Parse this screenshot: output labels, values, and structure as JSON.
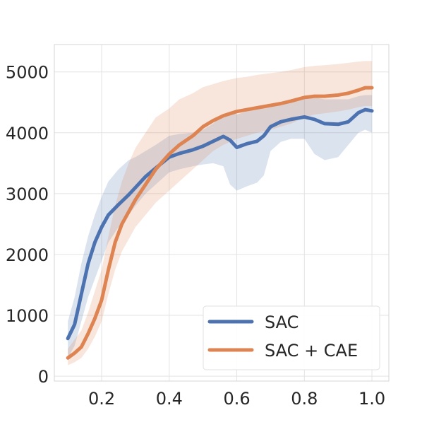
{
  "chart_data": {
    "type": "line",
    "title": "",
    "xlabel": "",
    "ylabel": "",
    "xlim": [
      0.06,
      1.05
    ],
    "ylim": [
      -80,
      5450
    ],
    "x_ticks": [
      0.2,
      0.4,
      0.6,
      0.8,
      1.0
    ],
    "x_tick_labels": [
      "0.2",
      "0.4",
      "0.6",
      "0.8",
      "1.0"
    ],
    "y_ticks": [
      0,
      1000,
      2000,
      3000,
      4000,
      5000
    ],
    "y_tick_labels": [
      "0",
      "1000",
      "2000",
      "3000",
      "4000",
      "5000"
    ],
    "grid": true,
    "legend_position": "bottom-right",
    "series": [
      {
        "name": "SAC",
        "color": "#4c72b0",
        "x": [
          0.1,
          0.12,
          0.14,
          0.16,
          0.18,
          0.2,
          0.22,
          0.25,
          0.28,
          0.3,
          0.33,
          0.36,
          0.4,
          0.43,
          0.47,
          0.5,
          0.53,
          0.56,
          0.58,
          0.6,
          0.63,
          0.66,
          0.68,
          0.7,
          0.73,
          0.76,
          0.8,
          0.83,
          0.86,
          0.9,
          0.93,
          0.96,
          0.98,
          1.0
        ],
        "values": [
          620,
          850,
          1350,
          1850,
          2200,
          2450,
          2650,
          2820,
          2980,
          3100,
          3280,
          3420,
          3600,
          3660,
          3720,
          3780,
          3860,
          3940,
          3880,
          3760,
          3820,
          3860,
          3950,
          4100,
          4180,
          4220,
          4260,
          4220,
          4150,
          4140,
          4180,
          4330,
          4380,
          4360
        ],
        "lower": [
          300,
          500,
          900,
          1300,
          1600,
          1900,
          2200,
          2450,
          2650,
          2800,
          3000,
          3150,
          3350,
          3400,
          3450,
          3480,
          3500,
          3450,
          3150,
          3050,
          3120,
          3180,
          3300,
          3700,
          3850,
          3900,
          3900,
          3650,
          3550,
          3600,
          3800,
          4000,
          4050,
          4000
        ],
        "upper": [
          900,
          1300,
          1850,
          2300,
          2650,
          2950,
          3200,
          3400,
          3550,
          3600,
          3700,
          3800,
          3950,
          3980,
          4000,
          4050,
          4150,
          4300,
          4350,
          4300,
          4350,
          4380,
          4400,
          4450,
          4480,
          4500,
          4550,
          4580,
          4550,
          4550,
          4550,
          4600,
          4620,
          4620
        ]
      },
      {
        "name": "SAC + CAE",
        "color": "#dd8452",
        "x": [
          0.1,
          0.12,
          0.14,
          0.16,
          0.18,
          0.2,
          0.22,
          0.24,
          0.26,
          0.28,
          0.3,
          0.33,
          0.36,
          0.4,
          0.43,
          0.47,
          0.5,
          0.53,
          0.56,
          0.6,
          0.63,
          0.66,
          0.7,
          0.73,
          0.76,
          0.8,
          0.83,
          0.86,
          0.9,
          0.93,
          0.96,
          0.98,
          1.0
        ],
        "values": [
          300,
          380,
          480,
          700,
          950,
          1250,
          1750,
          2200,
          2500,
          2700,
          2900,
          3150,
          3400,
          3650,
          3800,
          3950,
          4100,
          4200,
          4280,
          4350,
          4380,
          4410,
          4450,
          4480,
          4520,
          4580,
          4600,
          4600,
          4620,
          4650,
          4700,
          4740,
          4740
        ],
        "lower": [
          180,
          230,
          300,
          450,
          650,
          900,
          1350,
          1750,
          2050,
          2250,
          2450,
          2650,
          2850,
          3050,
          3200,
          3400,
          3550,
          3700,
          3800,
          3900,
          3950,
          4000,
          4050,
          4100,
          4150,
          4250,
          4300,
          4320,
          4350,
          4380,
          4420,
          4440,
          4440
        ],
        "upper": [
          450,
          600,
          750,
          1050,
          1400,
          1750,
          2300,
          2800,
          3200,
          3500,
          3750,
          4000,
          4250,
          4400,
          4550,
          4650,
          4750,
          4800,
          4850,
          4900,
          4920,
          4950,
          4980,
          5000,
          5030,
          5080,
          5100,
          5110,
          5130,
          5150,
          5170,
          5180,
          5180
        ]
      }
    ]
  }
}
